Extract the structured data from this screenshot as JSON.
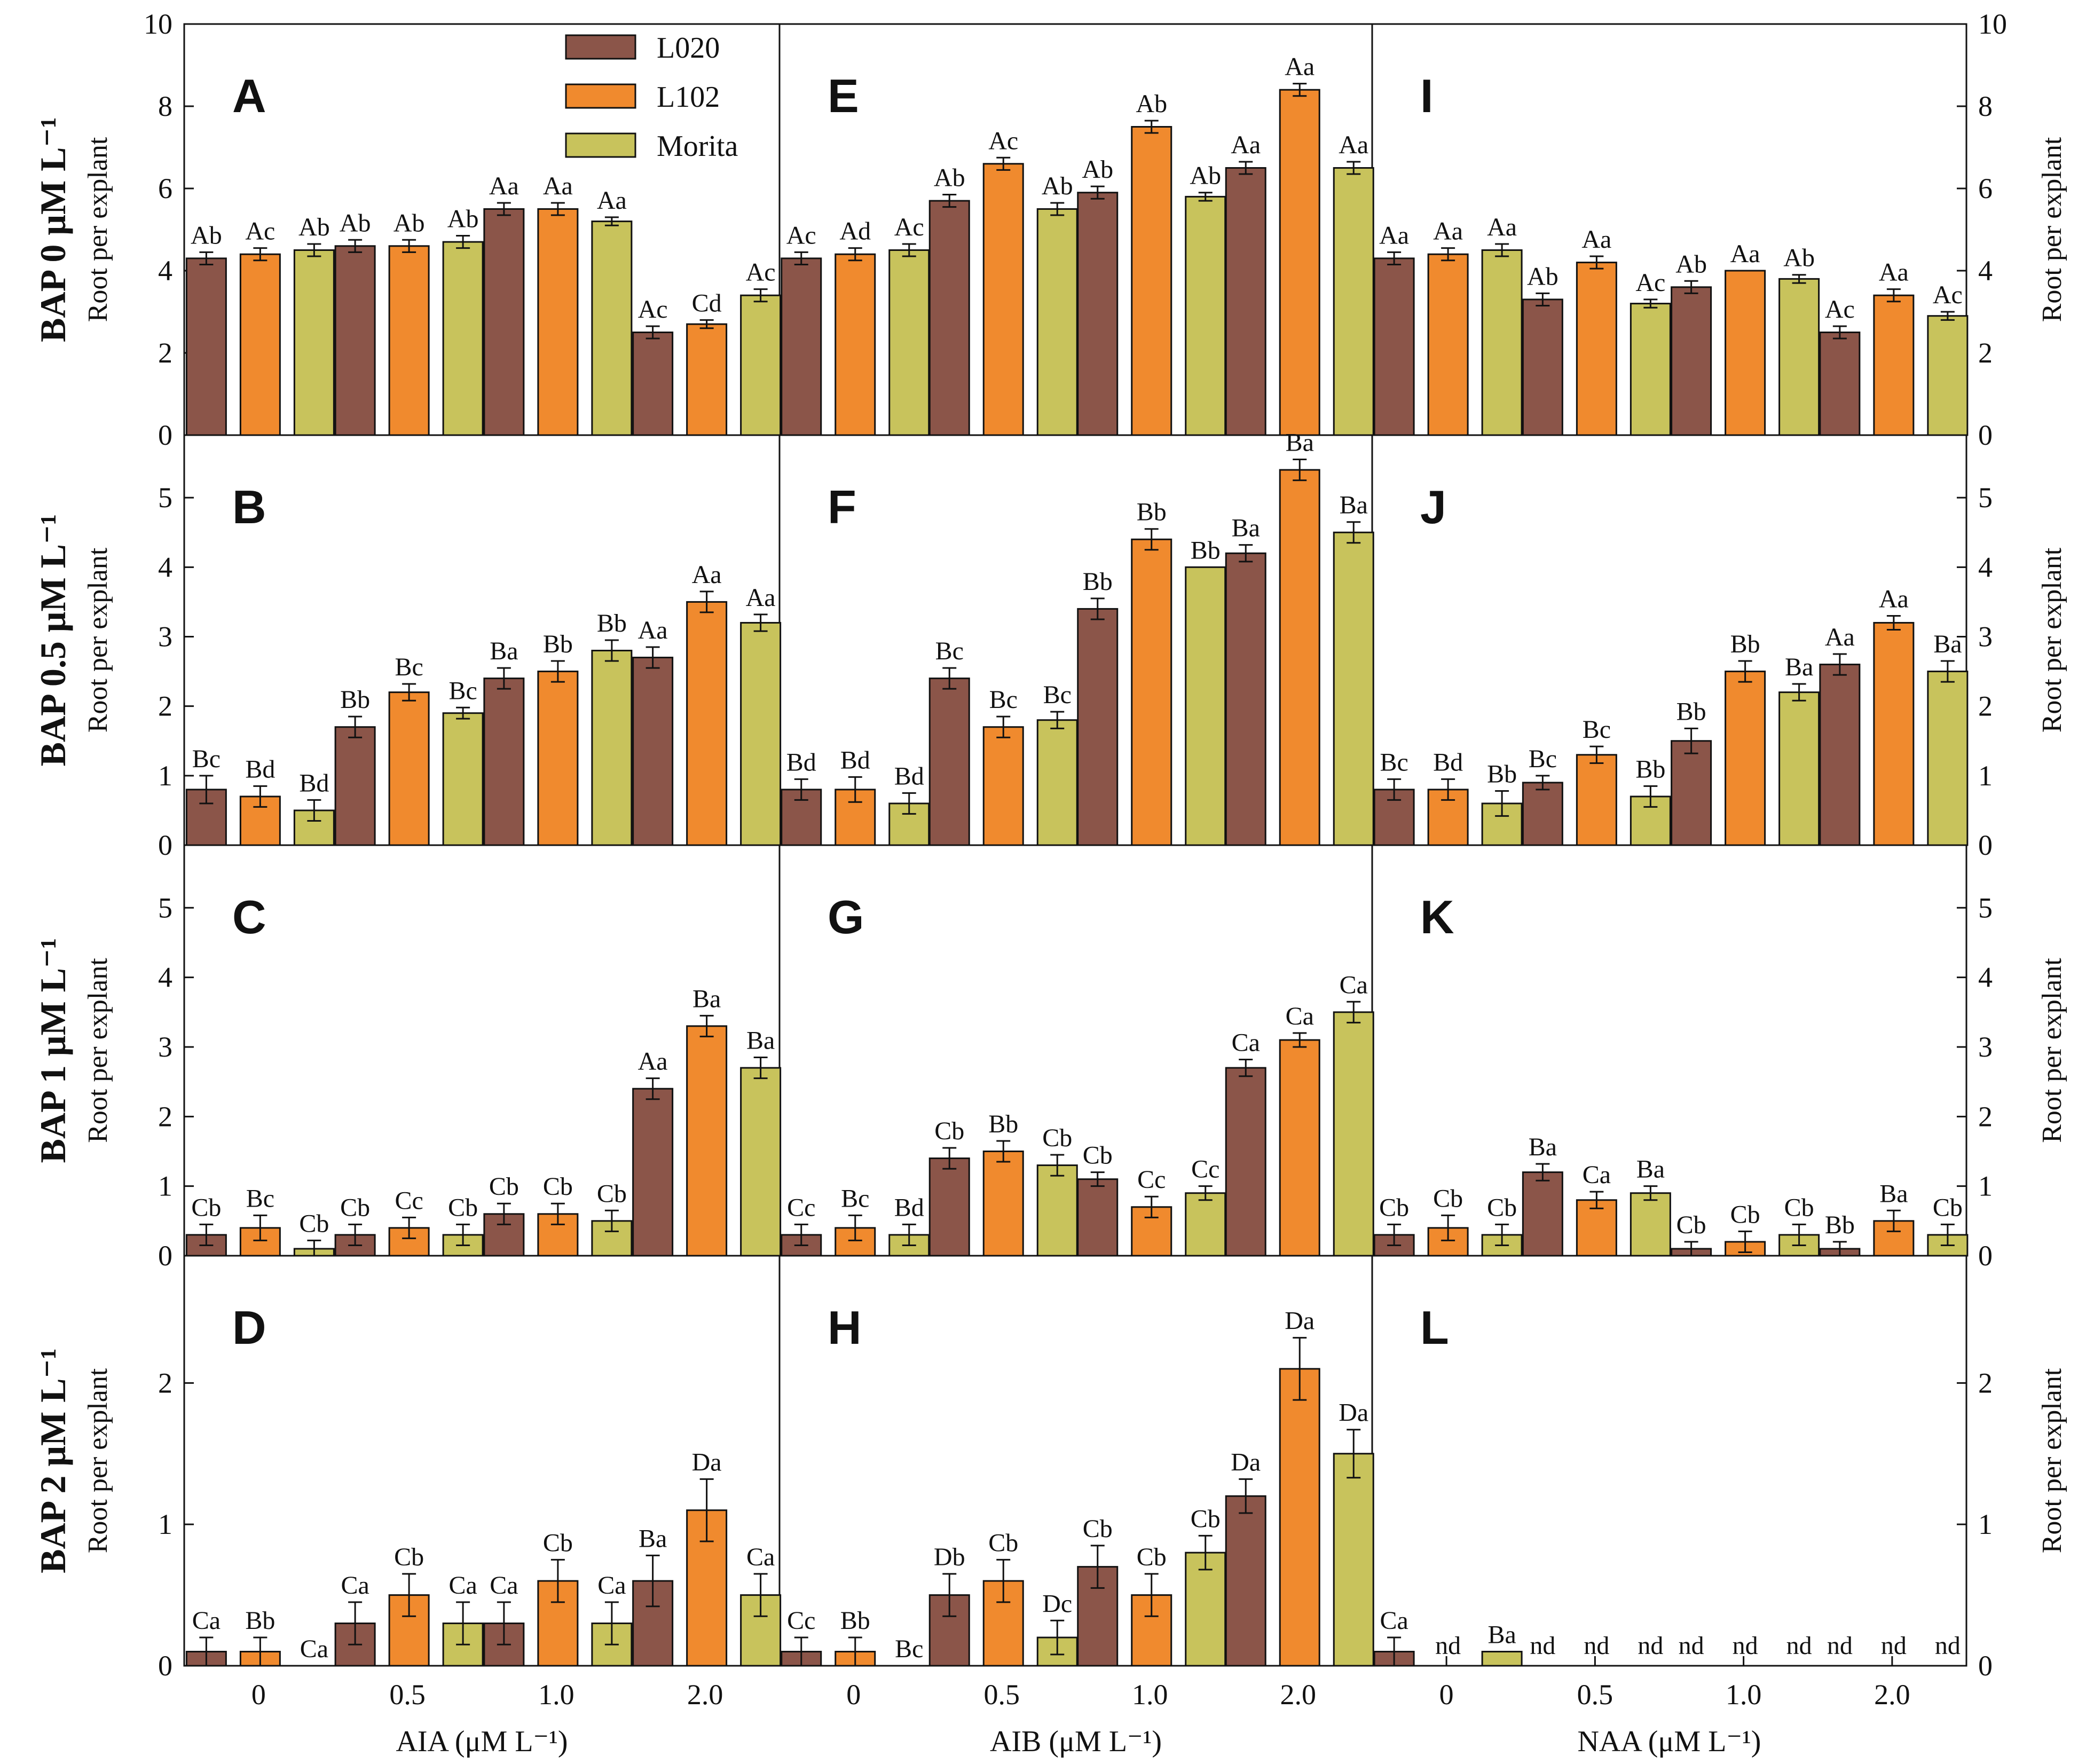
{
  "chart_data": {
    "type": "bar",
    "title": "",
    "series_names": [
      "L020",
      "L102",
      "Morita"
    ],
    "colors": {
      "L020": "#8b5549",
      "L102": "#f08a2e",
      "Morita": "#c8c35c"
    },
    "legend": {
      "position": "top-left of panel E",
      "entries": [
        "L020",
        "L102",
        "Morita"
      ]
    },
    "x_tick_labels": [
      "0",
      "0.5",
      "1.0",
      "2.0"
    ],
    "columns": [
      {
        "name": "AIA",
        "xlabel": "AIA (μM L⁻¹)"
      },
      {
        "name": "AIB",
        "xlabel": "AIB (μM L⁻¹)"
      },
      {
        "name": "NAA",
        "xlabel": "NAA (μM L⁻¹)"
      }
    ],
    "rows": [
      {
        "title": "BAP 0 μM L⁻¹",
        "ylabel": "Root per explant",
        "ylim": [
          0,
          10
        ],
        "yticks": [
          "0",
          "2",
          "4",
          "6",
          "8",
          "10"
        ],
        "ytick_values": [
          0,
          2,
          4,
          6,
          8,
          10
        ]
      },
      {
        "title": "BAP 0.5 μM L⁻¹",
        "ylabel": "Root per explant",
        "ylim": [
          0,
          5.9
        ],
        "yticks": [
          "0",
          "1",
          "2",
          "3",
          "4",
          "5"
        ],
        "ytick_values": [
          0,
          1,
          2,
          3,
          4,
          5
        ]
      },
      {
        "title": "BAP 1 μM L⁻¹",
        "ylabel": "Root per explant",
        "ylim": [
          0,
          5.9
        ],
        "yticks": [
          "0",
          "1",
          "2",
          "3",
          "4",
          "5"
        ],
        "ytick_values": [
          0,
          1,
          2,
          3,
          4,
          5
        ]
      },
      {
        "title": "BAP 2 μM L⁻¹",
        "ylabel": "Root per explant",
        "ylim": [
          0,
          2.9
        ],
        "yticks": [
          "0",
          "1",
          "2"
        ],
        "ytick_values": [
          0,
          1,
          2
        ]
      }
    ],
    "panels": [
      {
        "letter": "A",
        "row": 0,
        "col": 0,
        "values": [
          [
            4.3,
            4.4,
            4.5
          ],
          [
            4.6,
            4.6,
            4.7
          ],
          [
            5.5,
            5.5,
            5.2
          ],
          [
            2.5,
            2.7,
            3.4
          ]
        ],
        "errors": [
          [
            0.15,
            0.15,
            0.15
          ],
          [
            0.15,
            0.15,
            0.15
          ],
          [
            0.15,
            0.15,
            0.1
          ],
          [
            0.15,
            0.1,
            0.15
          ]
        ],
        "labels": [
          [
            "Ab",
            "Ac",
            "Ab"
          ],
          [
            "Ab",
            "Ab",
            "Ab"
          ],
          [
            "Aa",
            "Aa",
            "Aa"
          ],
          [
            "Ac",
            "Cd",
            "Ac"
          ]
        ]
      },
      {
        "letter": "E",
        "row": 0,
        "col": 1,
        "values": [
          [
            4.3,
            4.4,
            4.5
          ],
          [
            5.7,
            6.6,
            5.5
          ],
          [
            5.9,
            7.5,
            5.8
          ],
          [
            6.5,
            8.4,
            6.5
          ]
        ],
        "errors": [
          [
            0.15,
            0.15,
            0.15
          ],
          [
            0.15,
            0.15,
            0.15
          ],
          [
            0.15,
            0.15,
            0.1
          ],
          [
            0.15,
            0.15,
            0.15
          ]
        ],
        "labels": [
          [
            "Ac",
            "Ad",
            "Ac"
          ],
          [
            "Ab",
            "Ac",
            "Ab"
          ],
          [
            "Ab",
            "Ab",
            "Ab"
          ],
          [
            "Aa",
            "Aa",
            "Aa"
          ]
        ]
      },
      {
        "letter": "I",
        "row": 0,
        "col": 2,
        "values": [
          [
            4.3,
            4.4,
            4.5
          ],
          [
            3.3,
            4.2,
            3.2
          ],
          [
            3.6,
            4.0,
            3.8
          ],
          [
            2.5,
            3.4,
            2.9
          ]
        ],
        "errors": [
          [
            0.15,
            0.15,
            0.15
          ],
          [
            0.15,
            0.15,
            0.1
          ],
          [
            0.15,
            0,
            0.1
          ],
          [
            0.15,
            0.15,
            0.1
          ]
        ],
        "labels": [
          [
            "Aa",
            "Aa",
            "Aa"
          ],
          [
            "Ab",
            "Aa",
            "Ac"
          ],
          [
            "Ab",
            "Aa",
            "Ab"
          ],
          [
            "Ac",
            "Aa",
            "Ac"
          ]
        ]
      },
      {
        "letter": "B",
        "row": 1,
        "col": 0,
        "values": [
          [
            0.8,
            0.7,
            0.5
          ],
          [
            1.7,
            2.2,
            1.9
          ],
          [
            2.4,
            2.5,
            2.8
          ],
          [
            2.7,
            3.5,
            3.2
          ]
        ],
        "errors": [
          [
            0.2,
            0.15,
            0.15
          ],
          [
            0.15,
            0.12,
            0.08
          ],
          [
            0.15,
            0.15,
            0.15
          ],
          [
            0.15,
            0.15,
            0.12
          ]
        ],
        "labels": [
          [
            "Bc",
            "Bd",
            "Bd"
          ],
          [
            "Bb",
            "Bc",
            "Bc"
          ],
          [
            "Ba",
            "Bb",
            "Bb"
          ],
          [
            "Aa",
            "Aa",
            "Aa"
          ]
        ]
      },
      {
        "letter": "F",
        "row": 1,
        "col": 1,
        "values": [
          [
            0.8,
            0.8,
            0.6
          ],
          [
            2.4,
            1.7,
            1.8
          ],
          [
            3.4,
            4.4,
            4.0
          ],
          [
            4.2,
            5.4,
            4.5
          ]
        ],
        "errors": [
          [
            0.15,
            0.18,
            0.15
          ],
          [
            0.15,
            0.15,
            0.12
          ],
          [
            0.15,
            0.15,
            0
          ],
          [
            0.12,
            0.15,
            0.15
          ]
        ],
        "labels": [
          [
            "Bd",
            "Bd",
            "Bd"
          ],
          [
            "Bc",
            "Bc",
            "Bc"
          ],
          [
            "Bb",
            "Bb",
            "Bb"
          ],
          [
            "Ba",
            "Ba",
            "Ba"
          ]
        ]
      },
      {
        "letter": "J",
        "row": 1,
        "col": 2,
        "values": [
          [
            0.8,
            0.8,
            0.6
          ],
          [
            0.9,
            1.3,
            0.7
          ],
          [
            1.5,
            2.5,
            2.2
          ],
          [
            2.6,
            3.2,
            2.5
          ]
        ],
        "errors": [
          [
            0.15,
            0.15,
            0.18
          ],
          [
            0.1,
            0.12,
            0.15
          ],
          [
            0.18,
            0.15,
            0.12
          ],
          [
            0.15,
            0.1,
            0.15
          ]
        ],
        "labels": [
          [
            "Bc",
            "Bd",
            "Bb"
          ],
          [
            "Bc",
            "Bc",
            "Bb"
          ],
          [
            "Bb",
            "Bb",
            "Ba"
          ],
          [
            "Aa",
            "Aa",
            "Ba"
          ]
        ]
      },
      {
        "letter": "C",
        "row": 2,
        "col": 0,
        "values": [
          [
            0.3,
            0.4,
            0.1
          ],
          [
            0.3,
            0.4,
            0.3
          ],
          [
            0.6,
            0.6,
            0.5
          ],
          [
            2.4,
            3.3,
            2.7
          ]
        ],
        "errors": [
          [
            0.15,
            0.18,
            0.12
          ],
          [
            0.15,
            0.15,
            0.15
          ],
          [
            0.15,
            0.15,
            0.15
          ],
          [
            0.15,
            0.15,
            0.15
          ]
        ],
        "labels": [
          [
            "Cb",
            "Bc",
            "Cb"
          ],
          [
            "Cb",
            "Cc",
            "Cb"
          ],
          [
            "Cb",
            "Cb",
            "Cb"
          ],
          [
            "Aa",
            "Ba",
            "Ba"
          ]
        ]
      },
      {
        "letter": "G",
        "row": 2,
        "col": 1,
        "values": [
          [
            0.3,
            0.4,
            0.3
          ],
          [
            1.4,
            1.5,
            1.3
          ],
          [
            1.1,
            0.7,
            0.9
          ],
          [
            2.7,
            3.1,
            3.5
          ]
        ],
        "errors": [
          [
            0.15,
            0.18,
            0.15
          ],
          [
            0.15,
            0.15,
            0.15
          ],
          [
            0.1,
            0.15,
            0.1
          ],
          [
            0.12,
            0.1,
            0.15
          ]
        ],
        "labels": [
          [
            "Cc",
            "Bc",
            "Bd"
          ],
          [
            "Cb",
            "Bb",
            "Cb"
          ],
          [
            "Cb",
            "Cc",
            "Cc"
          ],
          [
            "Ca",
            "Ca",
            "Ca"
          ]
        ]
      },
      {
        "letter": "K",
        "row": 2,
        "col": 2,
        "values": [
          [
            0.3,
            0.4,
            0.3
          ],
          [
            1.2,
            0.8,
            0.9
          ],
          [
            0.1,
            0.2,
            0.3
          ],
          [
            0.1,
            0.5,
            0.3
          ]
        ],
        "errors": [
          [
            0.15,
            0.18,
            0.15
          ],
          [
            0.12,
            0.12,
            0.1
          ],
          [
            0.1,
            0.15,
            0.15
          ],
          [
            0.1,
            0.15,
            0.15
          ]
        ],
        "labels": [
          [
            "Cb",
            "Cb",
            "Cb"
          ],
          [
            "Ba",
            "Ca",
            "Ba"
          ],
          [
            "Cb",
            "Cb",
            "Cb"
          ],
          [
            "Bb",
            "Ba",
            "Cb"
          ]
        ]
      },
      {
        "letter": "D",
        "row": 3,
        "col": 0,
        "values": [
          [
            0.1,
            0.1,
            0
          ],
          [
            0.3,
            0.5,
            0.3
          ],
          [
            0.3,
            0.6,
            0.3
          ],
          [
            0.6,
            1.1,
            0.5
          ]
        ],
        "errors": [
          [
            0.1,
            0.1,
            0
          ],
          [
            0.15,
            0.15,
            0.15
          ],
          [
            0.15,
            0.15,
            0.15
          ],
          [
            0.18,
            0.22,
            0.15
          ]
        ],
        "labels": [
          [
            "Ca",
            "Bb",
            "Ca"
          ],
          [
            "Ca",
            "Cb",
            "Ca"
          ],
          [
            "Ca",
            "Cb",
            "Ca"
          ],
          [
            "Ba",
            "Da",
            "Ca"
          ]
        ]
      },
      {
        "letter": "H",
        "row": 3,
        "col": 1,
        "values": [
          [
            0.1,
            0.1,
            0
          ],
          [
            0.5,
            0.6,
            0.2
          ],
          [
            0.7,
            0.5,
            0.8
          ],
          [
            1.2,
            2.1,
            1.5
          ]
        ],
        "errors": [
          [
            0.1,
            0.1,
            0
          ],
          [
            0.15,
            0.15,
            0.12
          ],
          [
            0.15,
            0.15,
            0.12
          ],
          [
            0.12,
            0.22,
            0.17
          ]
        ],
        "labels": [
          [
            "Cc",
            "Bb",
            "Bc"
          ],
          [
            "Db",
            "Cb",
            "Dc"
          ],
          [
            "Cb",
            "Cb",
            "Cb"
          ],
          [
            "Da",
            "Da",
            "Da"
          ]
        ]
      },
      {
        "letter": "L",
        "row": 3,
        "col": 2,
        "values": [
          [
            0.1,
            0,
            0.1
          ],
          [
            0,
            0,
            0
          ],
          [
            0,
            0,
            0
          ],
          [
            0,
            0,
            0
          ]
        ],
        "errors": [
          [
            0.1,
            0,
            0
          ],
          [
            0,
            0,
            0
          ],
          [
            0,
            0,
            0
          ],
          [
            0,
            0,
            0
          ]
        ],
        "labels": [
          [
            "Ca",
            "nd",
            "Ba"
          ],
          [
            "nd",
            "nd",
            "nd"
          ],
          [
            "nd",
            "nd",
            "nd"
          ],
          [
            "nd",
            "nd",
            "nd"
          ]
        ],
        "nd": [
          [
            false,
            true,
            false
          ],
          [
            true,
            true,
            true
          ],
          [
            true,
            true,
            true
          ],
          [
            true,
            true,
            true
          ]
        ]
      }
    ]
  }
}
